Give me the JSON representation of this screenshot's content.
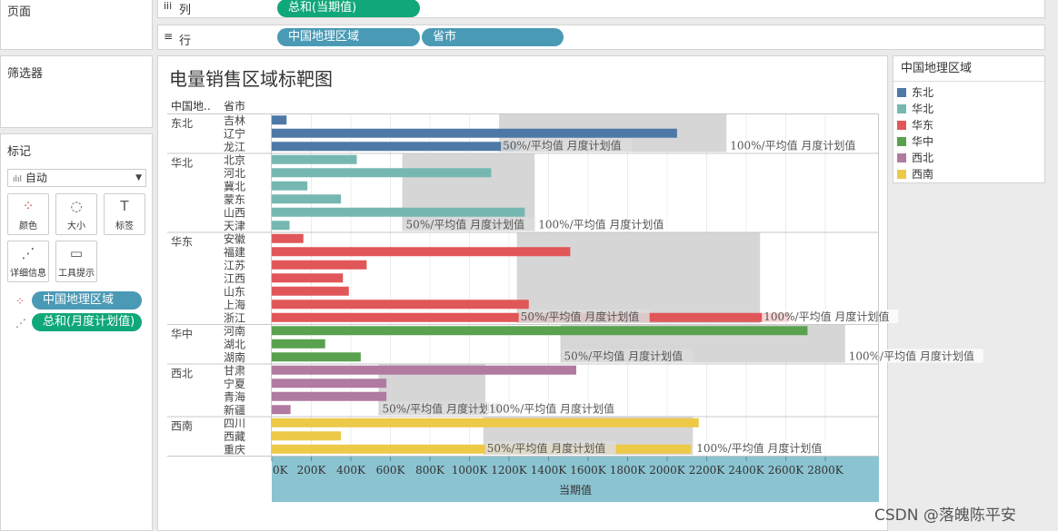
{
  "shelves": {
    "pages_title": "页面",
    "columns_label": "列",
    "columns_pill": "总和(当期值)",
    "rows_label": "行",
    "rows_pills": [
      "中国地理区域",
      "省市"
    ]
  },
  "filters": {
    "title": "筛选器"
  },
  "marks": {
    "title": "标记",
    "mark_type": "自动",
    "cards": [
      {
        "icon": "⁘",
        "label": "颜色"
      },
      {
        "icon": "◌",
        "label": "大小"
      },
      {
        "icon": "T",
        "label": "标签"
      },
      {
        "icon": "⋰",
        "label": "详细信息"
      },
      {
        "icon": "▭",
        "label": "工具提示"
      }
    ],
    "fields": [
      "中国地理区域",
      "总和(月度计划值)"
    ]
  },
  "legend": {
    "title": "中国地理区域",
    "items": [
      {
        "name": "东北",
        "color": "#4e79a7"
      },
      {
        "name": "华北",
        "color": "#76b7b2"
      },
      {
        "name": "华东",
        "color": "#e15759"
      },
      {
        "name": "华中",
        "color": "#59a14f"
      },
      {
        "name": "西北",
        "color": "#b07aa1"
      },
      {
        "name": "西南",
        "color": "#edc948"
      }
    ]
  },
  "watermark": "CSDN @落魄陈平安",
  "chart_data": {
    "type": "bar",
    "title": "电量销售区域标靶图",
    "row_header_region": "中国地..",
    "row_header_province": "省市",
    "xlabel": "当期值",
    "xlim": [
      0,
      3050000
    ],
    "x_ticks": [
      0,
      200000,
      400000,
      600000,
      800000,
      1000000,
      1200000,
      1400000,
      1600000,
      1800000,
      2000000,
      2200000,
      2400000,
      2600000,
      2800000
    ],
    "x_tick_labels": [
      "0K",
      "200K",
      "400K",
      "600K",
      "800K",
      "1000K",
      "1200K",
      "1400K",
      "1600K",
      "1800K",
      "2000K",
      "2200K",
      "2400K",
      "2600K",
      "2800K"
    ],
    "band_label_50": "50%/平均值 月度计划值",
    "band_label_100": "100%/平均值 月度计划值",
    "groups": [
      {
        "region": "东北",
        "band": [
          1150000,
          2300000
        ],
        "provinces": [
          {
            "name": "吉林",
            "value": 75000
          },
          {
            "name": "辽宁",
            "value": 2050000
          },
          {
            "name": "龙江",
            "value": 1250000
          }
        ]
      },
      {
        "region": "华北",
        "band": [
          660000,
          1330000
        ],
        "provinces": [
          {
            "name": "北京",
            "value": 430000
          },
          {
            "name": "河北",
            "value": 1110000
          },
          {
            "name": "冀北",
            "value": 180000
          },
          {
            "name": "蒙东",
            "value": 350000
          },
          {
            "name": "山西",
            "value": 1280000
          },
          {
            "name": "天津",
            "value": 90000
          }
        ]
      },
      {
        "region": "华东",
        "band": [
          1240000,
          2470000
        ],
        "provinces": [
          {
            "name": "安徽",
            "value": 160000
          },
          {
            "name": "福建",
            "value": 1510000
          },
          {
            "name": "江苏",
            "value": 480000
          },
          {
            "name": "江西",
            "value": 360000
          },
          {
            "name": "山东",
            "value": 390000
          },
          {
            "name": "上海",
            "value": 1300000
          },
          {
            "name": "浙江",
            "value": 2620000
          }
        ]
      },
      {
        "region": "华中",
        "band": [
          1460000,
          2900000
        ],
        "provinces": [
          {
            "name": "河南",
            "value": 2710000
          },
          {
            "name": "湖北",
            "value": 270000
          },
          {
            "name": "湖南",
            "value": 450000
          }
        ]
      },
      {
        "region": "西北",
        "band": [
          540000,
          1080000
        ],
        "provinces": [
          {
            "name": "甘肃",
            "value": 1540000
          },
          {
            "name": "宁夏",
            "value": 580000
          },
          {
            "name": "青海",
            "value": 580000
          },
          {
            "name": "新疆",
            "value": 95000
          }
        ]
      },
      {
        "region": "西南",
        "band": [
          1070000,
          2130000
        ],
        "provinces": [
          {
            "name": "四川",
            "value": 2160000
          },
          {
            "name": "西藏",
            "value": 350000
          },
          {
            "name": "重庆",
            "value": 2120000
          }
        ]
      }
    ]
  }
}
